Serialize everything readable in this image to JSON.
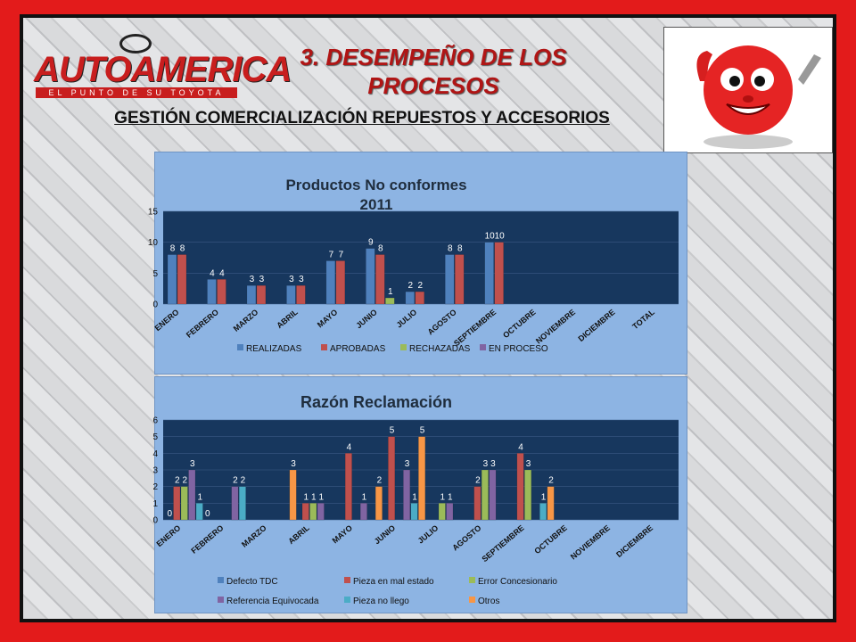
{
  "header": {
    "logo_text": "AUTOAMERICA",
    "logo_tagline": "EL PUNTO DE SU TOYOTA",
    "title_number": "3.",
    "title_text": "DESEMPEÑO DE LOS PROCESOS",
    "subtitle": "GESTIÓN COMERCIALIZACIÓN REPUESTOS Y ACCESORIOS"
  },
  "mascot": {
    "icon": "red-ball-mascot-thumbs-up-wrench-icon"
  },
  "colors": {
    "series1": [
      "#4f81bd",
      "#c0504d",
      "#9bbb59",
      "#8064a2"
    ],
    "series2": [
      "#4f81bd",
      "#c0504d",
      "#9bbb59",
      "#8064a2",
      "#4bacc6",
      "#f79646"
    ],
    "plot_bg": "#17375e",
    "panel_bg": "#8db4e3"
  },
  "chart_data": [
    {
      "type": "bar",
      "title": "Productos No conformes 2011",
      "xlabel": "",
      "ylabel": "",
      "ylim": [
        0,
        15
      ],
      "yticks": [
        0,
        5,
        10,
        15
      ],
      "categories": [
        "ENERO",
        "FEBRERO",
        "MARZO",
        "ABRIL",
        "MAYO",
        "JUNIO",
        "JULIO",
        "AGOSTO",
        "SEPTIEMBRE",
        "OCTUBRE",
        "NOVIEMBRE",
        "DICIEMBRE",
        "TOTAL"
      ],
      "series": [
        {
          "name": "REALIZADAS",
          "values": [
            8,
            4,
            3,
            3,
            7,
            9,
            2,
            8,
            10,
            null,
            null,
            null,
            null
          ]
        },
        {
          "name": "APROBADAS",
          "values": [
            8,
            4,
            3,
            3,
            7,
            8,
            2,
            8,
            10,
            null,
            null,
            null,
            null
          ]
        },
        {
          "name": "RECHAZADAS",
          "values": [
            null,
            null,
            null,
            null,
            null,
            1,
            null,
            null,
            null,
            null,
            null,
            null,
            null
          ]
        },
        {
          "name": "EN PROCESO",
          "values": [
            null,
            null,
            null,
            null,
            null,
            null,
            null,
            null,
            null,
            null,
            null,
            null,
            null
          ]
        }
      ],
      "legend": "bottom"
    },
    {
      "type": "bar",
      "title": "Razón Reclamación",
      "xlabel": "",
      "ylabel": "",
      "ylim": [
        0,
        6
      ],
      "yticks": [
        0,
        1,
        2,
        3,
        4,
        5,
        6
      ],
      "categories": [
        "ENERO",
        "FEBRERO",
        "MARZO",
        "ABRIL",
        "MAYO",
        "JUNIO",
        "JULIO",
        "AGOSTO",
        "SEPTIEMBRE",
        "OCTUBRE",
        "NOVIEMBRE",
        "DICIEMBRE"
      ],
      "series": [
        {
          "name": "Defecto TDC",
          "values": [
            0,
            null,
            null,
            null,
            null,
            null,
            null,
            null,
            null,
            null,
            null,
            null
          ]
        },
        {
          "name": "Pieza en mal estado",
          "values": [
            2,
            null,
            null,
            1,
            4,
            5,
            null,
            2,
            4,
            null,
            null,
            null
          ]
        },
        {
          "name": "Error Concesionario",
          "values": [
            2,
            null,
            null,
            1,
            null,
            null,
            1,
            3,
            3,
            null,
            null,
            null
          ]
        },
        {
          "name": "Referencia Equivocada",
          "values": [
            3,
            2,
            null,
            1,
            1,
            3,
            1,
            3,
            null,
            null,
            null,
            null
          ]
        },
        {
          "name": "Pieza no llego",
          "values": [
            1,
            2,
            null,
            null,
            null,
            1,
            null,
            null,
            1,
            null,
            null,
            null
          ]
        },
        {
          "name": "Otros",
          "values": [
            0,
            null,
            3,
            null,
            2,
            5,
            null,
            null,
            2,
            null,
            null,
            null
          ]
        }
      ],
      "legend": "bottom"
    }
  ]
}
